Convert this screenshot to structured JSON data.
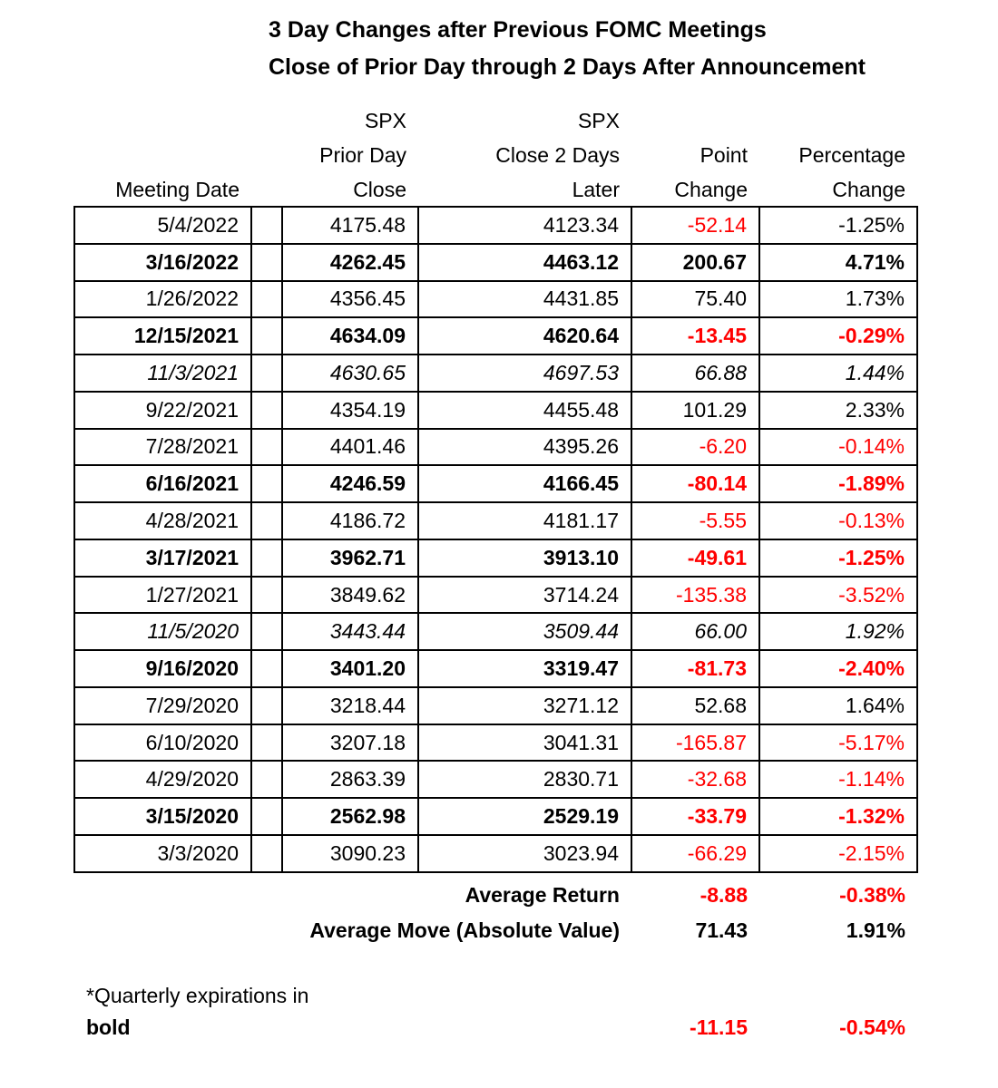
{
  "title": {
    "line1": "3 Day Changes after Previous FOMC Meetings",
    "line2": "Close of Prior Day through 2 Days After Announcement"
  },
  "header": {
    "spx_prior": "SPX",
    "spx_later": "SPX",
    "prior_day": "Prior Day",
    "close_2_days": "Close 2 Days",
    "point": "Point",
    "percentage": "Percentage",
    "meeting_date": "Meeting Date",
    "close": "Close",
    "later": "Later",
    "change_point": "Change",
    "change_pct": "Change"
  },
  "table": {
    "rows": [
      {
        "date": "5/4/2022",
        "prior_close": "4175.48",
        "close_2days": "4123.34",
        "point_change": "-52.14",
        "pct_change": "-1.25%",
        "style": "regular",
        "point_red": true,
        "pct_red": false
      },
      {
        "date": "3/16/2022",
        "prior_close": "4262.45",
        "close_2days": "4463.12",
        "point_change": "200.67",
        "pct_change": "4.71%",
        "style": "bold",
        "point_red": false,
        "pct_red": false
      },
      {
        "date": "1/26/2022",
        "prior_close": "4356.45",
        "close_2days": "4431.85",
        "point_change": "75.40",
        "pct_change": "1.73%",
        "style": "regular",
        "point_red": false,
        "pct_red": false
      },
      {
        "date": "12/15/2021",
        "prior_close": "4634.09",
        "close_2days": "4620.64",
        "point_change": "-13.45",
        "pct_change": "-0.29%",
        "style": "bold",
        "point_red": true,
        "pct_red": true
      },
      {
        "date": "11/3/2021",
        "prior_close": "4630.65",
        "close_2days": "4697.53",
        "point_change": "66.88",
        "pct_change": "1.44%",
        "style": "italic",
        "point_red": false,
        "pct_red": false
      },
      {
        "date": "9/22/2021",
        "prior_close": "4354.19",
        "close_2days": "4455.48",
        "point_change": "101.29",
        "pct_change": "2.33%",
        "style": "regular",
        "point_red": false,
        "pct_red": false
      },
      {
        "date": "7/28/2021",
        "prior_close": "4401.46",
        "close_2days": "4395.26",
        "point_change": "-6.20",
        "pct_change": "-0.14%",
        "style": "regular",
        "point_red": true,
        "pct_red": true
      },
      {
        "date": "6/16/2021",
        "prior_close": "4246.59",
        "close_2days": "4166.45",
        "point_change": "-80.14",
        "pct_change": "-1.89%",
        "style": "bold",
        "point_red": true,
        "pct_red": true
      },
      {
        "date": "4/28/2021",
        "prior_close": "4186.72",
        "close_2days": "4181.17",
        "point_change": "-5.55",
        "pct_change": "-0.13%",
        "style": "regular",
        "point_red": true,
        "pct_red": true
      },
      {
        "date": "3/17/2021",
        "prior_close": "3962.71",
        "close_2days": "3913.10",
        "point_change": "-49.61",
        "pct_change": "-1.25%",
        "style": "bold",
        "point_red": true,
        "pct_red": true
      },
      {
        "date": "1/27/2021",
        "prior_close": "3849.62",
        "close_2days": "3714.24",
        "point_change": "-135.38",
        "pct_change": "-3.52%",
        "style": "regular",
        "point_red": true,
        "pct_red": true
      },
      {
        "date": "11/5/2020",
        "prior_close": "3443.44",
        "close_2days": "3509.44",
        "point_change": "66.00",
        "pct_change": "1.92%",
        "style": "italic",
        "point_red": false,
        "pct_red": false
      },
      {
        "date": "9/16/2020",
        "prior_close": "3401.20",
        "close_2days": "3319.47",
        "point_change": "-81.73",
        "pct_change": "-2.40%",
        "style": "bold",
        "point_red": true,
        "pct_red": true
      },
      {
        "date": "7/29/2020",
        "prior_close": "3218.44",
        "close_2days": "3271.12",
        "point_change": "52.68",
        "pct_change": "1.64%",
        "style": "regular",
        "point_red": false,
        "pct_red": false
      },
      {
        "date": "6/10/2020",
        "prior_close": "3207.18",
        "close_2days": "3041.31",
        "point_change": "-165.87",
        "pct_change": "-5.17%",
        "style": "regular",
        "point_red": true,
        "pct_red": true
      },
      {
        "date": "4/29/2020",
        "prior_close": "2863.39",
        "close_2days": "2830.71",
        "point_change": "-32.68",
        "pct_change": "-1.14%",
        "style": "regular",
        "point_red": true,
        "pct_red": true
      },
      {
        "date": "3/15/2020",
        "prior_close": "2562.98",
        "close_2days": "2529.19",
        "point_change": "-33.79",
        "pct_change": "-1.32%",
        "style": "bold",
        "point_red": true,
        "pct_red": true
      },
      {
        "date": "3/3/2020",
        "prior_close": "3090.23",
        "close_2days": "3023.94",
        "point_change": "-66.29",
        "pct_change": "-2.15%",
        "style": "regular",
        "point_red": true,
        "pct_red": true
      }
    ]
  },
  "summary": {
    "avg_return": {
      "label": "Average Return",
      "point": "-8.88",
      "pct": "-0.38%"
    },
    "avg_move": {
      "label": "Average Move (Absolute Value)",
      "point": "71.43",
      "pct": "1.91%"
    }
  },
  "footnote": {
    "line1": "*Quarterly expirations in",
    "line2": "bold",
    "point": "-11.15",
    "pct": "-0.54%"
  },
  "colors": {
    "negative": "#ff0000",
    "text": "#000000",
    "border": "#000000",
    "background": "#ffffff"
  },
  "chart_data": {
    "type": "table",
    "title": "3 Day Changes after Previous FOMC Meetings",
    "subtitle": "Close of Prior Day through 2 Days After Announcement",
    "columns": [
      "Meeting Date",
      "SPX Prior Day Close",
      "SPX Close 2 Days Later",
      "Point Change",
      "Percentage Change"
    ],
    "rows": [
      [
        "5/4/2022",
        4175.48,
        4123.34,
        -52.14,
        "-1.25%"
      ],
      [
        "3/16/2022",
        4262.45,
        4463.12,
        200.67,
        "4.71%"
      ],
      [
        "1/26/2022",
        4356.45,
        4431.85,
        75.4,
        "1.73%"
      ],
      [
        "12/15/2021",
        4634.09,
        4620.64,
        -13.45,
        "-0.29%"
      ],
      [
        "11/3/2021",
        4630.65,
        4697.53,
        66.88,
        "1.44%"
      ],
      [
        "9/22/2021",
        4354.19,
        4455.48,
        101.29,
        "2.33%"
      ],
      [
        "7/28/2021",
        4401.46,
        4395.26,
        -6.2,
        "-0.14%"
      ],
      [
        "6/16/2021",
        4246.59,
        4166.45,
        -80.14,
        "-1.89%"
      ],
      [
        "4/28/2021",
        4186.72,
        4181.17,
        -5.55,
        "-0.13%"
      ],
      [
        "3/17/2021",
        3962.71,
        3913.1,
        -49.61,
        "-1.25%"
      ],
      [
        "1/27/2021",
        3849.62,
        3714.24,
        -135.38,
        "-3.52%"
      ],
      [
        "11/5/2020",
        3443.44,
        3509.44,
        66.0,
        "1.92%"
      ],
      [
        "9/16/2020",
        3401.2,
        3319.47,
        -81.73,
        "-2.40%"
      ],
      [
        "7/29/2020",
        3218.44,
        3271.12,
        52.68,
        "1.64%"
      ],
      [
        "6/10/2020",
        3207.18,
        3041.31,
        -165.87,
        "-5.17%"
      ],
      [
        "4/29/2020",
        2863.39,
        2830.71,
        -32.68,
        "-1.14%"
      ],
      [
        "3/15/2020",
        2562.98,
        2529.19,
        -33.79,
        "-1.32%"
      ],
      [
        "3/3/2020",
        3090.23,
        3023.94,
        -66.29,
        "-2.15%"
      ]
    ],
    "summary_rows": [
      [
        "Average Return",
        -8.88,
        "-0.38%"
      ],
      [
        "Average Move (Absolute Value)",
        71.43,
        "1.91%"
      ]
    ],
    "footnote_values": [
      -11.15,
      "-0.54%"
    ],
    "notes": "*Quarterly expirations in bold",
    "bold_rows": [
      "3/16/2022",
      "12/15/2021",
      "6/16/2021",
      "3/17/2021",
      "9/16/2020",
      "3/15/2020"
    ],
    "italic_rows": [
      "11/3/2021",
      "11/5/2020"
    ],
    "negative_values_color": "#ff0000"
  }
}
